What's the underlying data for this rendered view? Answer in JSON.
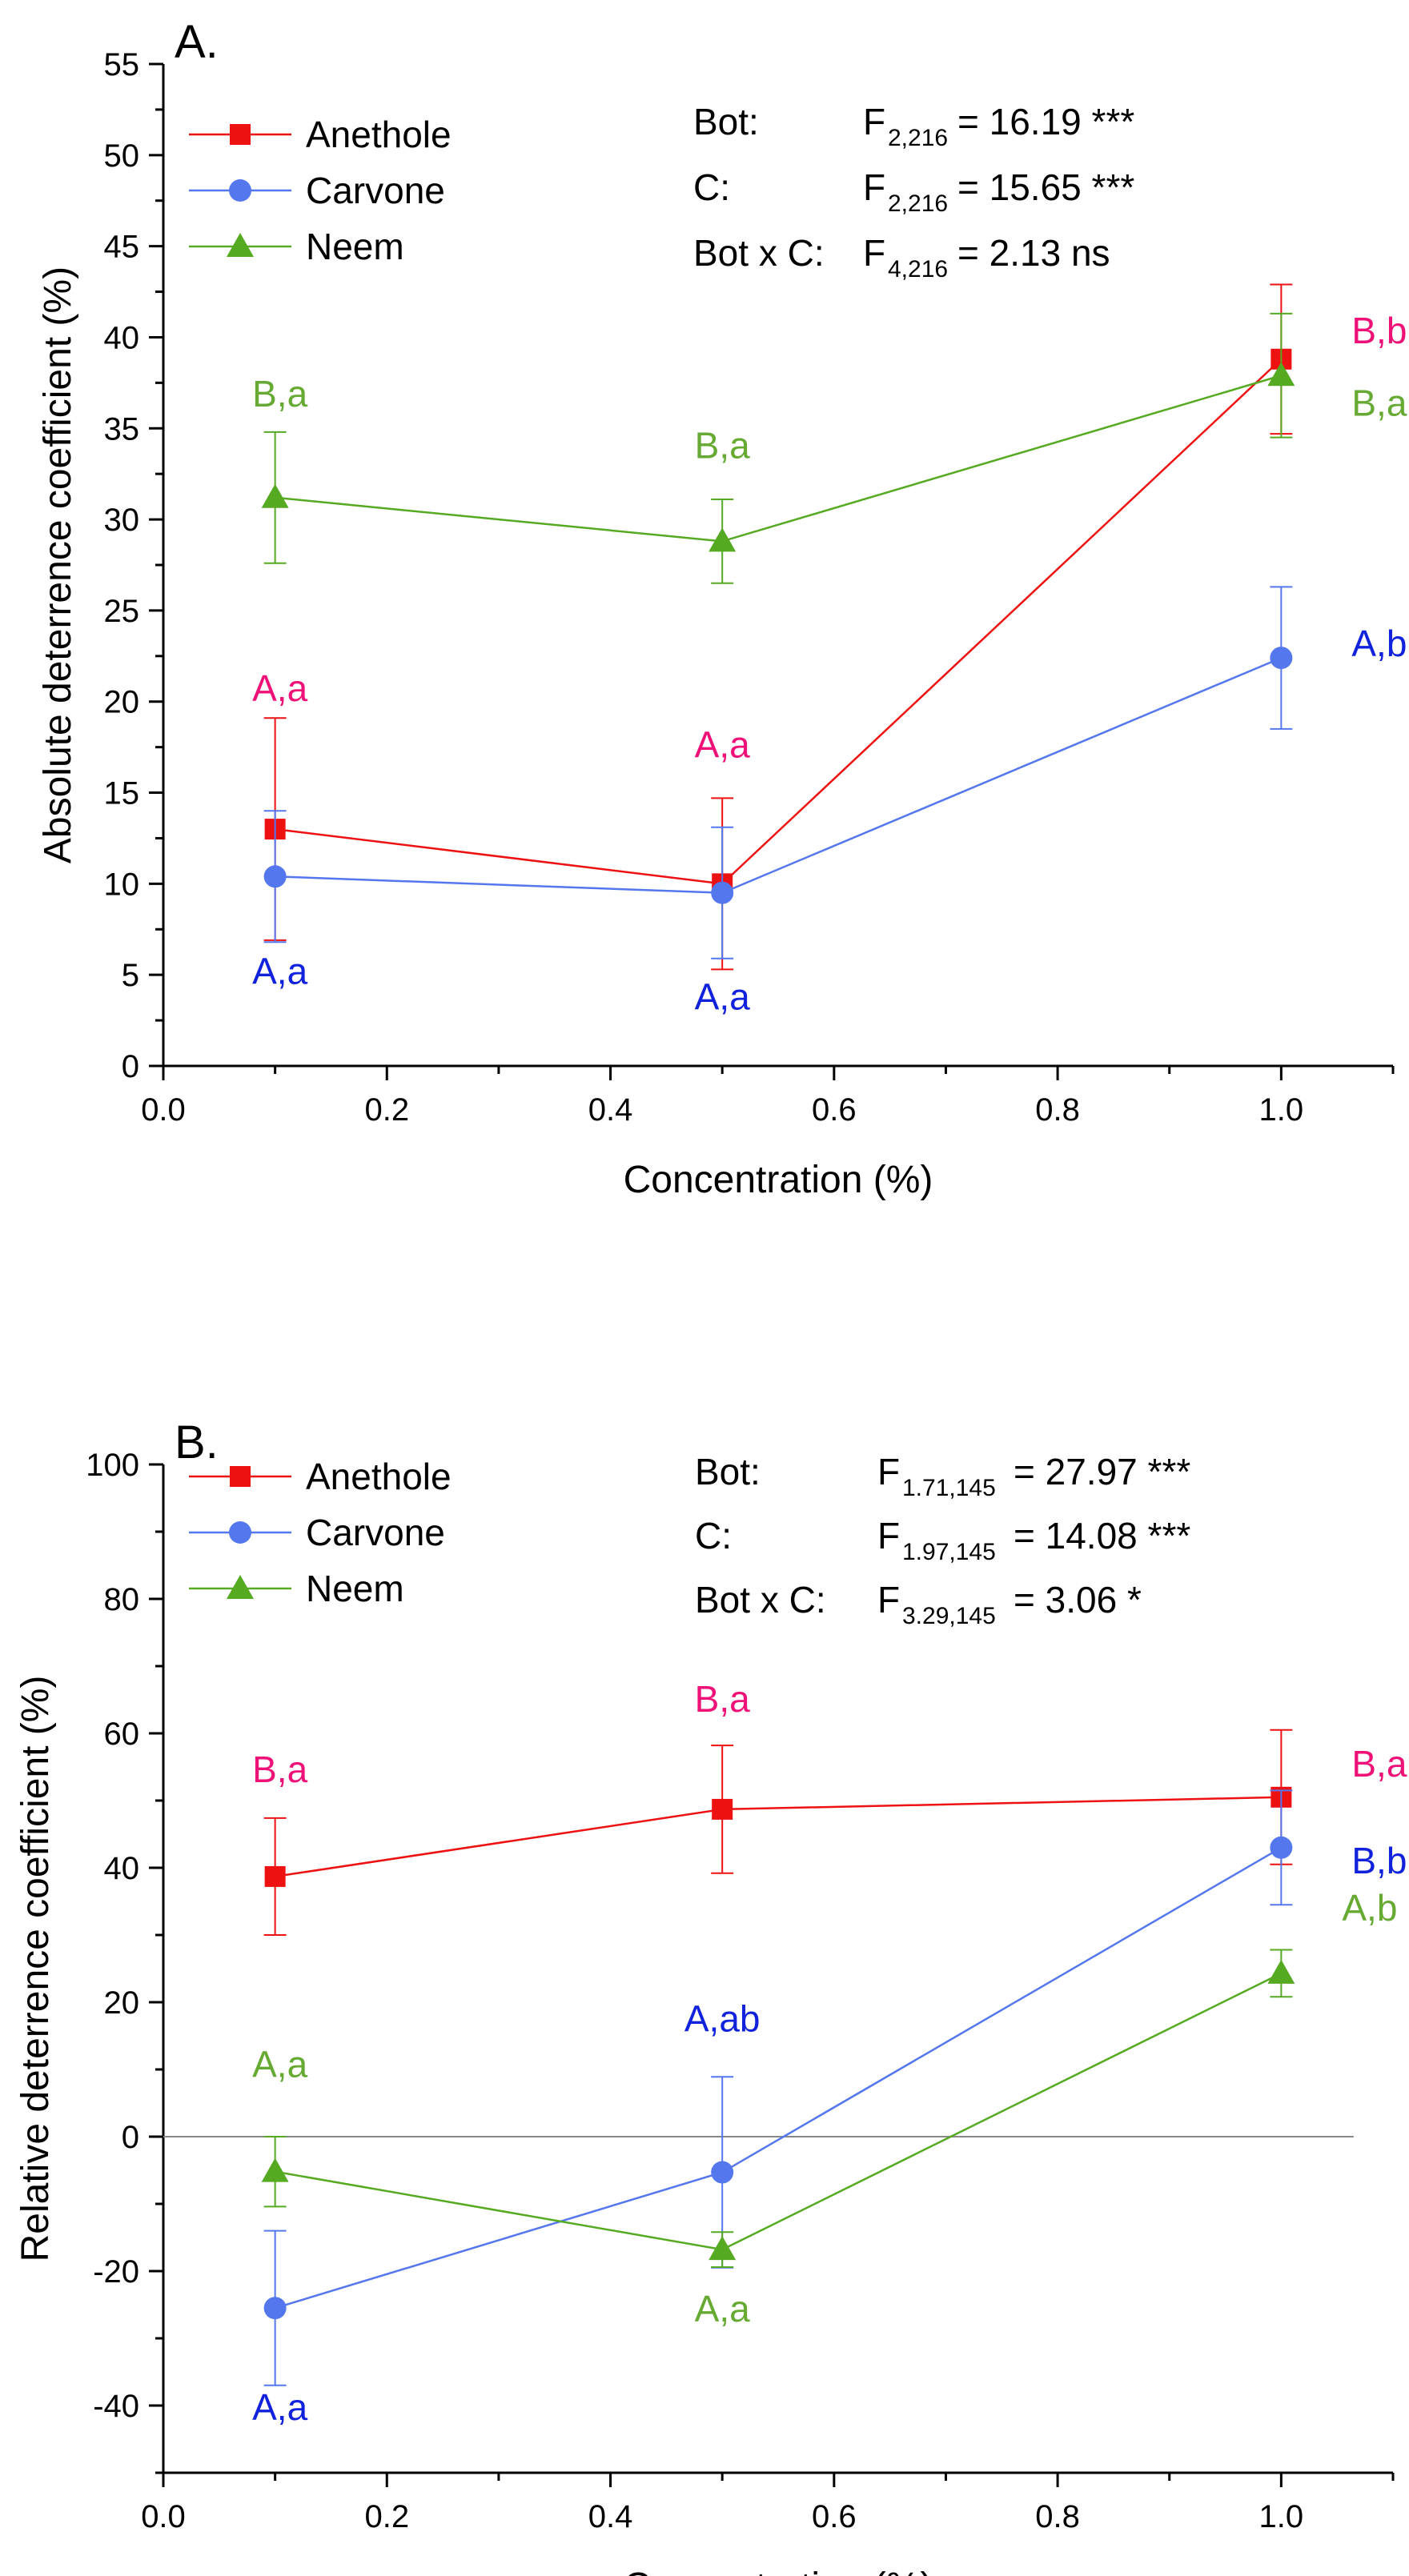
{
  "chart_data": [
    {
      "type": "line",
      "panel_label": "A.",
      "xlabel": "Concentration (%)",
      "ylabel": "Absolute deterrence coefficient (%)",
      "xlim": [
        0.0,
        1.1
      ],
      "ylim": [
        0,
        55
      ],
      "xticks": [
        "0.0",
        "0.2",
        "0.4",
        "0.6",
        "0.8",
        "1.0"
      ],
      "xtick_values": [
        0.0,
        0.2,
        0.4,
        0.6,
        0.8,
        1.0
      ],
      "yticks": [
        "0",
        "5",
        "10",
        "15",
        "20",
        "25",
        "30",
        "35",
        "40",
        "45",
        "50",
        "55"
      ],
      "ytick_values": [
        0,
        5,
        10,
        15,
        20,
        25,
        30,
        35,
        40,
        45,
        50,
        55
      ],
      "x": [
        0.1,
        0.5,
        1.0
      ],
      "series": [
        {
          "name": "Anethole",
          "marker": "square",
          "color": "#ee1111",
          "label_color": "#ee1177",
          "values": [
            13.0,
            10.0,
            38.8
          ],
          "errors": [
            6.1,
            4.7,
            4.1
          ],
          "point_labels": [
            "A,a",
            "A,a",
            "B,b"
          ]
        },
        {
          "name": "Carvone",
          "marker": "circle",
          "color": "#5577ee",
          "label_color": "#1122dd",
          "values": [
            10.4,
            9.5,
            22.4
          ],
          "errors": [
            3.6,
            3.6,
            3.9
          ],
          "point_labels": [
            "A,a",
            "A,a",
            "A,b"
          ]
        },
        {
          "name": "Neem",
          "marker": "triangle",
          "color": "#55aa22",
          "label_color": "#66aa33",
          "values": [
            31.2,
            28.8,
            37.9
          ],
          "errors": [
            3.6,
            2.3,
            3.4
          ],
          "point_labels": [
            "B,a",
            "B,a",
            "B,a"
          ]
        }
      ],
      "legend": "top-left",
      "stats": [
        {
          "factor": "Bot:",
          "F": "F",
          "sub": "2,216",
          "value": "= 16.19 ***"
        },
        {
          "factor": "C:",
          "F": "F",
          "sub": "2,216",
          "value": "= 15.65 ***"
        },
        {
          "factor": "Bot x C:",
          "F": "F",
          "sub": "4,216",
          "value": "=   2.13 ns"
        }
      ]
    },
    {
      "type": "line",
      "panel_label": "B.",
      "xlabel": "Concentration (%)",
      "ylabel": "Relative deterrence coefficient (%)",
      "xlim": [
        0.0,
        1.1
      ],
      "ylim": [
        -50,
        100
      ],
      "xticks": [
        "0.0",
        "0.2",
        "0.4",
        "0.6",
        "0.8",
        "1.0"
      ],
      "xtick_values": [
        0.0,
        0.2,
        0.4,
        0.6,
        0.8,
        1.0
      ],
      "yticks": [
        "-40",
        "-20",
        "0",
        "20",
        "40",
        "60",
        "80",
        "100"
      ],
      "ytick_values": [
        -40,
        -20,
        0,
        20,
        40,
        60,
        80,
        100
      ],
      "zero_line": true,
      "x": [
        0.1,
        0.5,
        1.0
      ],
      "series": [
        {
          "name": "Anethole",
          "marker": "square",
          "color": "#ee1111",
          "label_color": "#ee1177",
          "values": [
            38.7,
            48.7,
            50.5
          ],
          "errors": [
            8.7,
            9.5,
            10.0
          ],
          "point_labels": [
            "B,a",
            "B,a",
            "B,a"
          ]
        },
        {
          "name": "Carvone",
          "marker": "circle",
          "color": "#5577ee",
          "label_color": "#1122dd",
          "values": [
            -25.5,
            -5.3,
            43.0
          ],
          "errors": [
            11.5,
            14.2,
            8.5
          ],
          "point_labels": [
            "A,a",
            "A,ab",
            "B,b"
          ]
        },
        {
          "name": "Neem",
          "marker": "triangle",
          "color": "#55aa22",
          "label_color": "#66aa33",
          "values": [
            -5.2,
            -16.8,
            24.3
          ],
          "errors": [
            5.2,
            2.6,
            3.5
          ],
          "point_labels": [
            "A,a",
            "A,a",
            "A,b"
          ]
        }
      ],
      "legend": "top-left",
      "stats": [
        {
          "factor": "Bot:",
          "F": "F",
          "sub": "1.71,145",
          "value": "=   27.97 ***"
        },
        {
          "factor": "C:",
          "F": "F",
          "sub": "1.97,145",
          "value": "=  14.08 ***"
        },
        {
          "factor": "Bot x C:",
          "F": "F",
          "sub": "3.29,145",
          "value": "=    3.06 *"
        }
      ]
    }
  ]
}
